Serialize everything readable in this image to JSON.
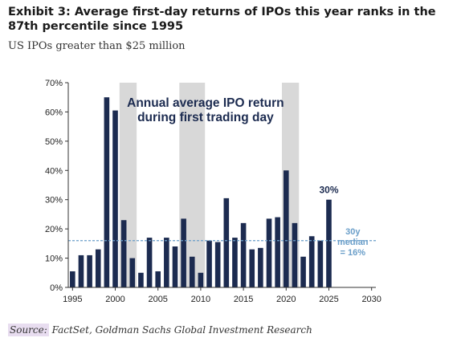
{
  "header": {
    "title": "Exhibit 3: Average first-day returns of IPOs this year ranks in the 87th percentile since 1995",
    "subtitle": "US IPOs greater than $25 million"
  },
  "footer": {
    "source_label": "Source:",
    "source_text": " FactSet, Goldman Sachs Global Investment Research"
  },
  "colors": {
    "bar": "#1c2b50",
    "recession": "#d8d8d8",
    "median_line": "#6a9ec9",
    "annotation": "#1c2b50",
    "median_text": "#6a9ec9"
  },
  "chart_data": {
    "type": "bar",
    "title": "Annual average IPO return during first trading day",
    "title_lines": [
      "Annual average IPO return",
      "during first trading day"
    ],
    "x": [
      1995,
      1996,
      1997,
      1998,
      1999,
      2000,
      2001,
      2002,
      2003,
      2004,
      2005,
      2006,
      2007,
      2008,
      2009,
      2010,
      2011,
      2012,
      2013,
      2014,
      2015,
      2016,
      2017,
      2018,
      2019,
      2020,
      2021,
      2022,
      2023,
      2024,
      2025
    ],
    "values": [
      5.5,
      11,
      11,
      13,
      65,
      60.5,
      23,
      10,
      5,
      17,
      5.5,
      17,
      14,
      23.5,
      10.5,
      5,
      16,
      15.5,
      30.5,
      17,
      22,
      13,
      13.5,
      23.5,
      24,
      40,
      22,
      10.5,
      17.5,
      16,
      30
    ],
    "unit": "%",
    "xlim": [
      1994.5,
      2030.5
    ],
    "ylim": [
      0,
      70
    ],
    "yticks": [
      0,
      10,
      20,
      30,
      40,
      50,
      60,
      70
    ],
    "ytick_labels": [
      "0%",
      "10%",
      "20%",
      "30%",
      "40%",
      "50%",
      "60%",
      "70%"
    ],
    "xticks": [
      1995,
      2000,
      2005,
      2010,
      2015,
      2020,
      2025,
      2030
    ],
    "xtick_labels": [
      "1995",
      "2000",
      "2005",
      "2010",
      "2015",
      "2020",
      "2025",
      "2030"
    ],
    "recession_bands": [
      [
        2000.5,
        2002.5
      ],
      [
        2007.5,
        2010.5
      ],
      [
        2019.5,
        2021.5
      ]
    ],
    "median": 16,
    "median_label_lines": [
      "30y",
      "median",
      "= 16%"
    ],
    "annotations": [
      {
        "x": 2025,
        "y": 30,
        "text": "30%"
      }
    ],
    "grid": false
  }
}
